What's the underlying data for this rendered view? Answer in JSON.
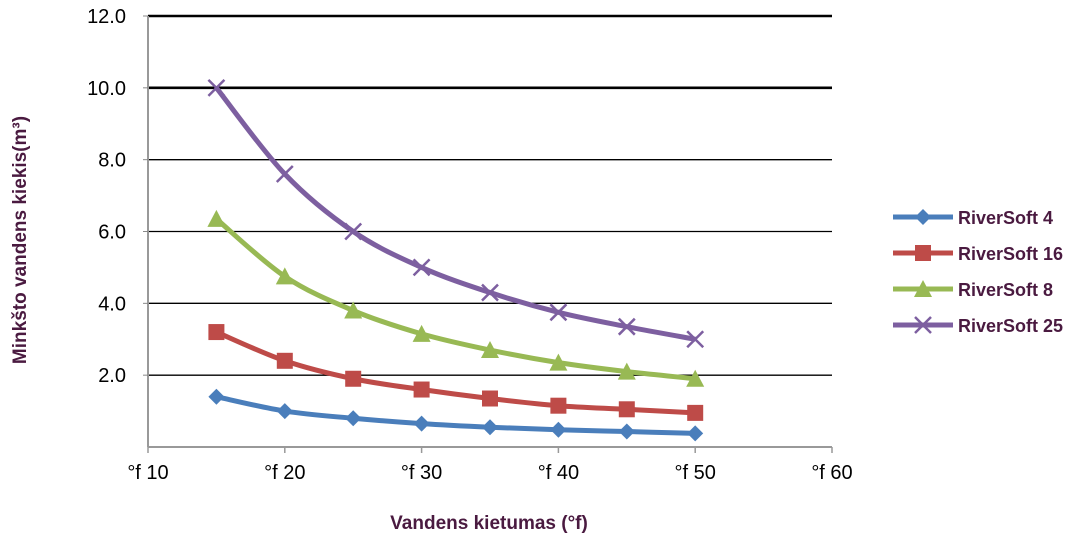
{
  "chart_data": {
    "type": "line",
    "title": "",
    "xlabel": "Vandens kietumas (°f)",
    "ylabel": "Minkšto vandens kiekis(m³)",
    "x": [
      15,
      20,
      25,
      30,
      35,
      40,
      45,
      50
    ],
    "xlim": [
      10,
      60
    ],
    "ylim": [
      0,
      12
    ],
    "x_ticks": [
      10,
      20,
      30,
      40,
      50,
      60
    ],
    "x_tick_labels": [
      "°f 10",
      "°f 20",
      "°f 30",
      "°f 40",
      "°f 50",
      "°f 60"
    ],
    "y_ticks": [
      2,
      4,
      6,
      8,
      10,
      12
    ],
    "y_tick_labels": [
      "2.0",
      "4.0",
      "6.0",
      "8.0",
      "10.0",
      "12.0"
    ],
    "grid": true,
    "legend_position": "right",
    "series": [
      {
        "name": "RiverSoft 4",
        "color": "#4a7ebb",
        "marker": "diamond",
        "values": [
          1.4,
          1.0,
          0.8,
          0.65,
          0.55,
          0.48,
          0.43,
          0.38
        ]
      },
      {
        "name": "RiverSoft 16",
        "color": "#be4b48",
        "marker": "square",
        "values": [
          3.2,
          2.4,
          1.9,
          1.6,
          1.35,
          1.15,
          1.05,
          0.95
        ]
      },
      {
        "name": "RiverSoft 8",
        "color": "#98b954",
        "marker": "triangle",
        "values": [
          6.35,
          4.75,
          3.8,
          3.15,
          2.7,
          2.35,
          2.1,
          1.9
        ]
      },
      {
        "name": "RiverSoft 25",
        "color": "#7d5fa0",
        "marker": "x",
        "values": [
          10.0,
          7.6,
          6.0,
          5.0,
          4.3,
          3.75,
          3.35,
          3.0
        ]
      }
    ]
  }
}
